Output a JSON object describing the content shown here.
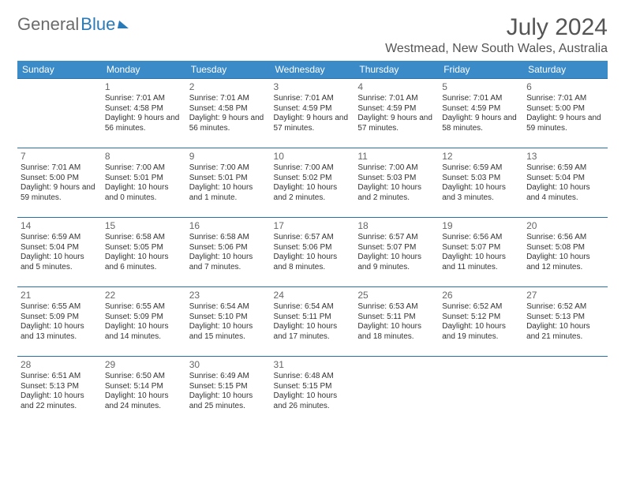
{
  "logo": {
    "text1": "General",
    "text2": "Blue"
  },
  "title": "July 2024",
  "location": "Westmead, New South Wales, Australia",
  "colors": {
    "header_bg": "#3b8bc8",
    "header_text": "#ffffff",
    "row_border": "#2a6fa8",
    "logo_gray": "#6b6b6b",
    "logo_blue": "#2a7ab8",
    "text": "#333333",
    "title_color": "#555555"
  },
  "weekdays": [
    "Sunday",
    "Monday",
    "Tuesday",
    "Wednesday",
    "Thursday",
    "Friday",
    "Saturday"
  ],
  "weeks": [
    [
      null,
      {
        "n": "1",
        "sunrise": "7:01 AM",
        "sunset": "4:58 PM",
        "daylight": "9 hours and 56 minutes."
      },
      {
        "n": "2",
        "sunrise": "7:01 AM",
        "sunset": "4:58 PM",
        "daylight": "9 hours and 56 minutes."
      },
      {
        "n": "3",
        "sunrise": "7:01 AM",
        "sunset": "4:59 PM",
        "daylight": "9 hours and 57 minutes."
      },
      {
        "n": "4",
        "sunrise": "7:01 AM",
        "sunset": "4:59 PM",
        "daylight": "9 hours and 57 minutes."
      },
      {
        "n": "5",
        "sunrise": "7:01 AM",
        "sunset": "4:59 PM",
        "daylight": "9 hours and 58 minutes."
      },
      {
        "n": "6",
        "sunrise": "7:01 AM",
        "sunset": "5:00 PM",
        "daylight": "9 hours and 59 minutes."
      }
    ],
    [
      {
        "n": "7",
        "sunrise": "7:01 AM",
        "sunset": "5:00 PM",
        "daylight": "9 hours and 59 minutes."
      },
      {
        "n": "8",
        "sunrise": "7:00 AM",
        "sunset": "5:01 PM",
        "daylight": "10 hours and 0 minutes."
      },
      {
        "n": "9",
        "sunrise": "7:00 AM",
        "sunset": "5:01 PM",
        "daylight": "10 hours and 1 minute."
      },
      {
        "n": "10",
        "sunrise": "7:00 AM",
        "sunset": "5:02 PM",
        "daylight": "10 hours and 2 minutes."
      },
      {
        "n": "11",
        "sunrise": "7:00 AM",
        "sunset": "5:03 PM",
        "daylight": "10 hours and 2 minutes."
      },
      {
        "n": "12",
        "sunrise": "6:59 AM",
        "sunset": "5:03 PM",
        "daylight": "10 hours and 3 minutes."
      },
      {
        "n": "13",
        "sunrise": "6:59 AM",
        "sunset": "5:04 PM",
        "daylight": "10 hours and 4 minutes."
      }
    ],
    [
      {
        "n": "14",
        "sunrise": "6:59 AM",
        "sunset": "5:04 PM",
        "daylight": "10 hours and 5 minutes."
      },
      {
        "n": "15",
        "sunrise": "6:58 AM",
        "sunset": "5:05 PM",
        "daylight": "10 hours and 6 minutes."
      },
      {
        "n": "16",
        "sunrise": "6:58 AM",
        "sunset": "5:06 PM",
        "daylight": "10 hours and 7 minutes."
      },
      {
        "n": "17",
        "sunrise": "6:57 AM",
        "sunset": "5:06 PM",
        "daylight": "10 hours and 8 minutes."
      },
      {
        "n": "18",
        "sunrise": "6:57 AM",
        "sunset": "5:07 PM",
        "daylight": "10 hours and 9 minutes."
      },
      {
        "n": "19",
        "sunrise": "6:56 AM",
        "sunset": "5:07 PM",
        "daylight": "10 hours and 11 minutes."
      },
      {
        "n": "20",
        "sunrise": "6:56 AM",
        "sunset": "5:08 PM",
        "daylight": "10 hours and 12 minutes."
      }
    ],
    [
      {
        "n": "21",
        "sunrise": "6:55 AM",
        "sunset": "5:09 PM",
        "daylight": "10 hours and 13 minutes."
      },
      {
        "n": "22",
        "sunrise": "6:55 AM",
        "sunset": "5:09 PM",
        "daylight": "10 hours and 14 minutes."
      },
      {
        "n": "23",
        "sunrise": "6:54 AM",
        "sunset": "5:10 PM",
        "daylight": "10 hours and 15 minutes."
      },
      {
        "n": "24",
        "sunrise": "6:54 AM",
        "sunset": "5:11 PM",
        "daylight": "10 hours and 17 minutes."
      },
      {
        "n": "25",
        "sunrise": "6:53 AM",
        "sunset": "5:11 PM",
        "daylight": "10 hours and 18 minutes."
      },
      {
        "n": "26",
        "sunrise": "6:52 AM",
        "sunset": "5:12 PM",
        "daylight": "10 hours and 19 minutes."
      },
      {
        "n": "27",
        "sunrise": "6:52 AM",
        "sunset": "5:13 PM",
        "daylight": "10 hours and 21 minutes."
      }
    ],
    [
      {
        "n": "28",
        "sunrise": "6:51 AM",
        "sunset": "5:13 PM",
        "daylight": "10 hours and 22 minutes."
      },
      {
        "n": "29",
        "sunrise": "6:50 AM",
        "sunset": "5:14 PM",
        "daylight": "10 hours and 24 minutes."
      },
      {
        "n": "30",
        "sunrise": "6:49 AM",
        "sunset": "5:15 PM",
        "daylight": "10 hours and 25 minutes."
      },
      {
        "n": "31",
        "sunrise": "6:48 AM",
        "sunset": "5:15 PM",
        "daylight": "10 hours and 26 minutes."
      },
      null,
      null,
      null
    ]
  ],
  "labels": {
    "sunrise": "Sunrise: ",
    "sunset": "Sunset: ",
    "daylight": "Daylight: "
  }
}
